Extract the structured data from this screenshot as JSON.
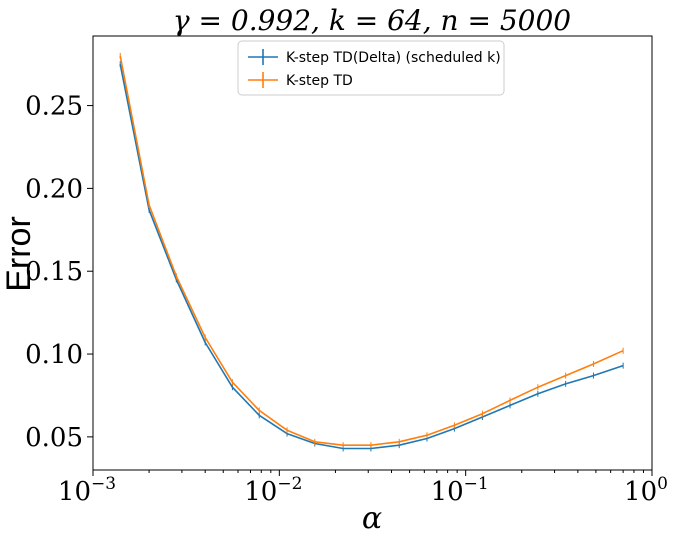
{
  "chart_data": {
    "type": "line",
    "title": "γ = 0.992, k = 64, n = 5000",
    "xlabel": "α",
    "ylabel": "Error",
    "xscale": "log",
    "xlim": [
      0.001,
      1.0
    ],
    "ylim": [
      0.03,
      0.292
    ],
    "grid": false,
    "legend_placement": "top-center",
    "x_ticks": [
      {
        "value": 0.001,
        "base": "10",
        "exp": "−3"
      },
      {
        "value": 0.01,
        "base": "10",
        "exp": "−2"
      },
      {
        "value": 0.1,
        "base": "10",
        "exp": "−1"
      },
      {
        "value": 1.0,
        "base": "10",
        "exp": "0"
      }
    ],
    "y_ticks": [
      {
        "value": 0.05,
        "label": "0.05"
      },
      {
        "value": 0.1,
        "label": "0.10"
      },
      {
        "value": 0.15,
        "label": "0.15"
      },
      {
        "value": 0.2,
        "label": "0.20"
      },
      {
        "value": 0.25,
        "label": "0.25"
      }
    ],
    "x": [
      0.0014,
      0.002,
      0.0028,
      0.004,
      0.0056,
      0.0078,
      0.011,
      0.0155,
      0.022,
      0.031,
      0.044,
      0.062,
      0.087,
      0.123,
      0.173,
      0.244,
      0.344,
      0.485,
      0.7
    ],
    "series": [
      {
        "name": "K-step TD(Delta) (scheduled k)",
        "color": "#1f77b4",
        "values": [
          0.275,
          0.187,
          0.145,
          0.107,
          0.08,
          0.063,
          0.052,
          0.046,
          0.043,
          0.043,
          0.045,
          0.049,
          0.055,
          0.062,
          0.069,
          0.076,
          0.082,
          0.087,
          0.093
        ]
      },
      {
        "name": "K-step TD",
        "color": "#ff7f0e",
        "values": [
          0.28,
          0.19,
          0.147,
          0.11,
          0.083,
          0.066,
          0.054,
          0.047,
          0.045,
          0.045,
          0.047,
          0.051,
          0.057,
          0.064,
          0.072,
          0.08,
          0.087,
          0.094,
          0.102
        ]
      }
    ]
  }
}
